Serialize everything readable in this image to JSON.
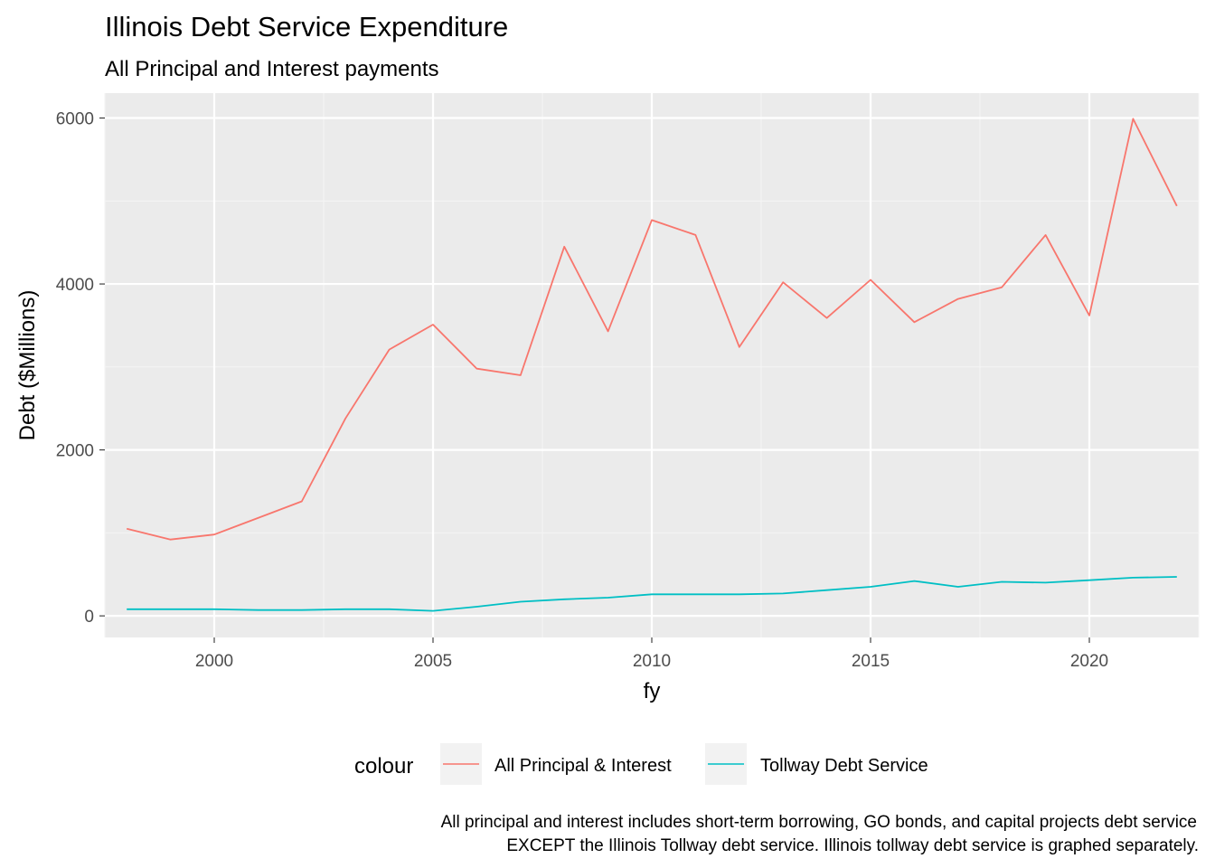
{
  "chart_data": {
    "type": "line",
    "title": "Illinois Debt Service Expenditure",
    "subtitle": "All Principal and Interest payments",
    "xlabel": "fy",
    "ylabel": "Debt ($Millions)",
    "xlim": [
      1997.5,
      2022.5
    ],
    "ylim": [
      -260,
      6300
    ],
    "x_ticks": [
      2000,
      2005,
      2010,
      2015,
      2020
    ],
    "y_ticks": [
      0,
      2000,
      4000,
      6000
    ],
    "grid": true,
    "legend": {
      "title": "colour",
      "position": "bottom"
    },
    "x": [
      1998,
      1999,
      2000,
      2001,
      2002,
      2003,
      2004,
      2005,
      2006,
      2007,
      2008,
      2009,
      2010,
      2011,
      2012,
      2013,
      2014,
      2015,
      2016,
      2017,
      2018,
      2019,
      2020,
      2021,
      2022
    ],
    "series": [
      {
        "name": "All Principal & Interest",
        "color": "#F8766D",
        "values": [
          1050,
          920,
          980,
          1180,
          1380,
          2380,
          3210,
          3510,
          2980,
          2900,
          4450,
          3430,
          4770,
          4590,
          3240,
          4020,
          3590,
          4050,
          3540,
          3820,
          3960,
          4590,
          3620,
          5990,
          4940
        ]
      },
      {
        "name": "Tollway Debt Service",
        "color": "#00BFC4",
        "values": [
          80,
          80,
          80,
          70,
          70,
          80,
          80,
          60,
          110,
          170,
          200,
          220,
          260,
          260,
          260,
          270,
          310,
          350,
          420,
          350,
          410,
          400,
          430,
          460,
          470
        ]
      }
    ],
    "caption": [
      "All principal and interest includes short-term borrowing, GO bonds, and capital projects debt service",
      "EXCEPT the Illinois Tollway debt service. Illinois tollway debt service is graphed separately."
    ]
  }
}
